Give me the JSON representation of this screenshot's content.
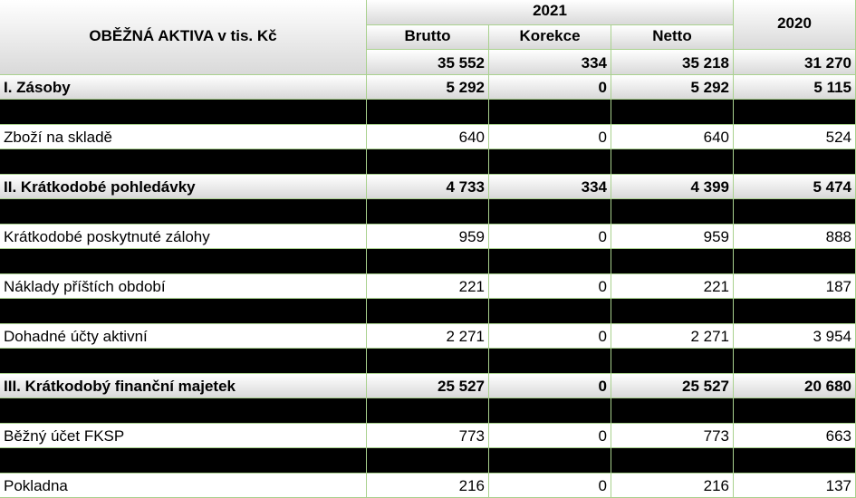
{
  "header": {
    "title": "OBĚŽNÁ AKTIVA v tis. Kč",
    "year_2021": "2021",
    "columns": [
      "Brutto",
      "Korekce",
      "Netto"
    ],
    "year_2020": "2020"
  },
  "totals": [
    "35 552",
    "334",
    "35 218",
    "31 270"
  ],
  "table": {
    "rows": [
      {
        "label": "I. Zásoby",
        "values": [
          "5 292",
          "0",
          "5 292",
          "5 115"
        ],
        "bold": true
      },
      {
        "label": "Zboží na skladě",
        "values": [
          "640",
          "0",
          "640",
          "524"
        ],
        "bold": false
      },
      {
        "label": "II. Krátkodobé pohledávky",
        "values": [
          "4 733",
          "334",
          "4 399",
          "5 474"
        ],
        "bold": true
      },
      {
        "label": "Krátkodobé poskytnuté zálohy",
        "values": [
          "959",
          "0",
          "959",
          "888"
        ],
        "bold": false
      },
      {
        "label": "Náklady příštích období",
        "values": [
          "221",
          "0",
          "221",
          "187"
        ],
        "bold": false
      },
      {
        "label": "Dohadné účty aktivní",
        "values": [
          "2 271",
          "0",
          "2 271",
          "3 954"
        ],
        "bold": false
      },
      {
        "label": "III. Krátkodobý finanční majetek",
        "values": [
          "25 527",
          "0",
          "25 527",
          "20 680"
        ],
        "bold": true
      },
      {
        "label": "Běžný účet FKSP",
        "values": [
          "773",
          "0",
          "773",
          "663"
        ],
        "bold": false
      },
      {
        "label": "Pokladna",
        "values": [
          "216",
          "0",
          "216",
          "137"
        ],
        "bold": false
      }
    ]
  }
}
